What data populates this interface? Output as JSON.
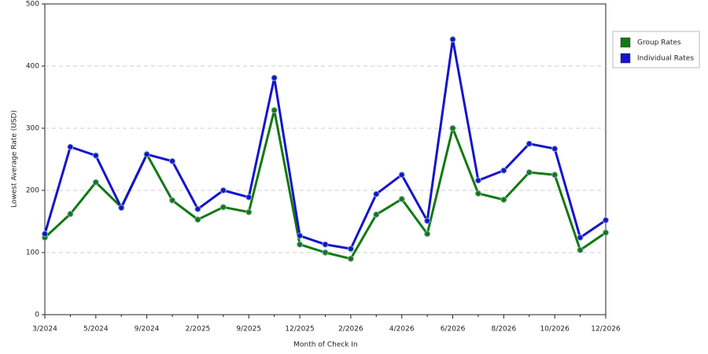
{
  "chart_data": {
    "type": "line",
    "xlabel": "Month of Check In",
    "ylabel": "Lowest Average Rate (USD)",
    "categories": [
      "3/2024",
      null,
      "5/2024",
      null,
      "9/2024",
      null,
      "2/2025",
      null,
      "9/2025",
      null,
      "12/2025",
      null,
      "2/2026",
      null,
      "4/2026",
      null,
      "6/2026",
      null,
      "8/2026",
      null,
      "10/2026",
      null,
      "12/2026"
    ],
    "series": [
      {
        "name": "Group Rates",
        "color": "#117a11",
        "values": [
          124,
          162,
          213,
          173,
          258,
          184,
          153,
          173,
          165,
          329,
          113,
          100,
          90,
          161,
          186,
          130,
          300,
          195,
          185,
          229,
          225,
          104,
          132
        ]
      },
      {
        "name": "Individual Rates",
        "color": "#1414cc",
        "values": [
          130,
          270,
          256,
          172,
          258,
          247,
          170,
          200,
          189,
          381,
          127,
          113,
          106,
          194,
          225,
          151,
          443,
          216,
          232,
          275,
          267,
          124,
          152
        ]
      }
    ],
    "ylim": [
      0,
      500
    ],
    "yticks": [
      0,
      100,
      200,
      300,
      400,
      500
    ],
    "grid": true,
    "legend": "right"
  }
}
